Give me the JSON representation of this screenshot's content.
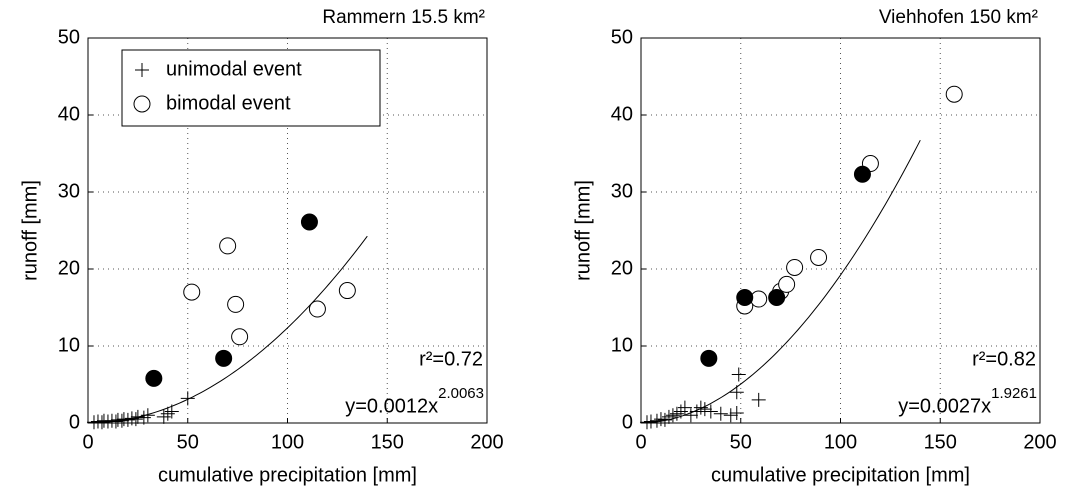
{
  "chart_data": [
    {
      "type": "scatter",
      "title": "Rammern 15.5 km²",
      "xlabel": "cumulative precipitation [mm]",
      "ylabel": "runoff [mm]",
      "xlim": [
        0,
        200
      ],
      "ylim": [
        0,
        50
      ],
      "xticks": [
        0,
        50,
        100,
        150,
        200
      ],
      "yticks": [
        0,
        10,
        20,
        30,
        40,
        50
      ],
      "grid": true,
      "legend": "upper left",
      "series": [
        {
          "name": "unimodal event",
          "marker": "plus",
          "color": "#000000",
          "x": [
            3,
            5,
            7,
            8,
            10,
            12,
            14,
            15,
            17,
            18,
            20,
            22,
            24,
            25,
            28,
            30,
            38,
            40,
            42,
            50
          ],
          "values": [
            0.1,
            0.2,
            0.1,
            0.3,
            0.2,
            0.3,
            0.2,
            0.4,
            0.3,
            0.5,
            0.4,
            0.6,
            0.5,
            0.8,
            0.7,
            1.0,
            0.8,
            1.2,
            1.5,
            3.2
          ]
        },
        {
          "name": "bimodal event",
          "marker": "circle-open",
          "color": "#000000",
          "x": [
            52,
            70,
            74,
            76,
            115,
            130
          ],
          "values": [
            17,
            23,
            15.4,
            11.2,
            14.8,
            17.2
          ]
        },
        {
          "marker": "circle-filled",
          "color": "#000000",
          "x": [
            33,
            68,
            111
          ],
          "values": [
            5.8,
            8.4,
            26.1
          ]
        }
      ],
      "fit": {
        "coefficient": 0.0012,
        "exponent": 2.0063,
        "x_range": [
          0,
          140
        ]
      },
      "annotations": {
        "r2": "r²=0.72",
        "fit_label": "y=0.0012x",
        "fit_exponent": "2.0063"
      }
    },
    {
      "type": "scatter",
      "title": "Viehhofen 150 km²",
      "xlabel": "cumulative precipitation [mm]",
      "ylabel": "runoff [mm]",
      "xlim": [
        0,
        200
      ],
      "ylim": [
        0,
        50
      ],
      "xticks": [
        0,
        50,
        100,
        150,
        200
      ],
      "yticks": [
        0,
        10,
        20,
        30,
        40,
        50
      ],
      "grid": true,
      "series": [
        {
          "marker": "plus",
          "color": "#000000",
          "x": [
            3,
            5,
            8,
            10,
            12,
            14,
            16,
            18,
            20,
            22,
            25,
            28,
            30,
            32,
            35,
            40,
            45,
            48,
            48,
            49,
            59
          ],
          "values": [
            0.1,
            0.2,
            0.3,
            0.5,
            0.4,
            0.8,
            1.0,
            1.2,
            1.5,
            2.0,
            1.0,
            1.5,
            2.0,
            1.8,
            1.5,
            1.2,
            1.0,
            1.3,
            4.0,
            6.3,
            3.0
          ]
        },
        {
          "marker": "circle-open",
          "color": "#000000",
          "x": [
            52,
            59,
            70,
            73,
            77,
            89,
            115,
            157
          ],
          "values": [
            15.2,
            16.1,
            17.1,
            18.0,
            20.2,
            21.5,
            33.7,
            42.7
          ]
        },
        {
          "marker": "circle-filled",
          "color": "#000000",
          "x": [
            34,
            52,
            68,
            111
          ],
          "values": [
            8.4,
            16.3,
            16.3,
            32.3
          ]
        }
      ],
      "fit": {
        "coefficient": 0.0027,
        "exponent": 1.9261,
        "x_range": [
          0,
          140
        ]
      },
      "annotations": {
        "r2": "r²=0.82",
        "fit_label": "y=0.0027x",
        "fit_exponent": "1.9261"
      }
    }
  ]
}
